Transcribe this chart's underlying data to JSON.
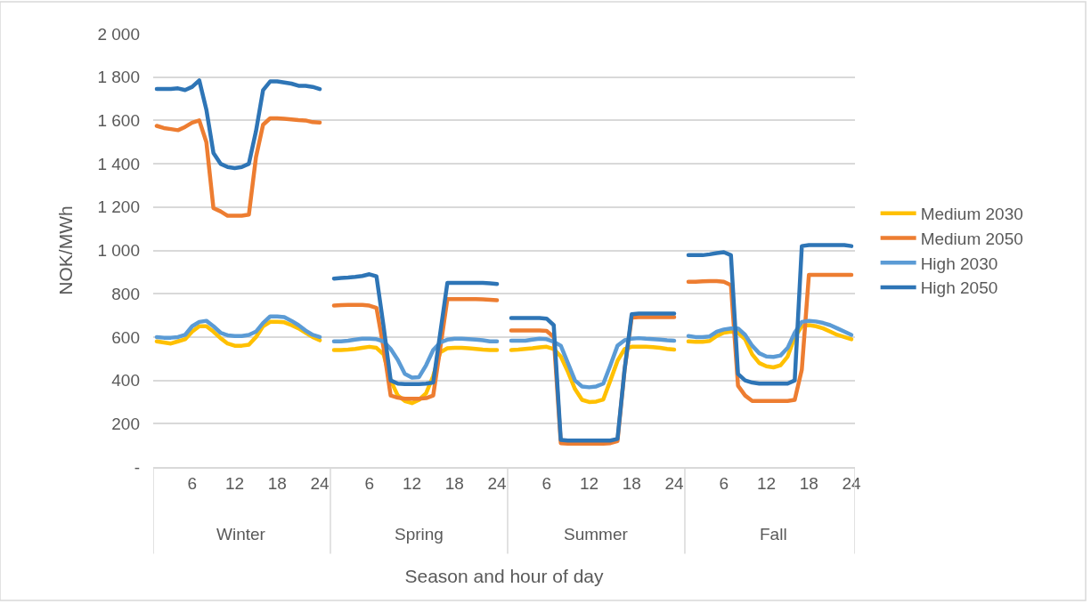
{
  "chart_data": {
    "type": "line",
    "xlabel": "Season and hour of day",
    "ylabel": "NOK/MWh",
    "categories": [
      null,
      null,
      null,
      null,
      null,
      "6",
      null,
      null,
      null,
      null,
      null,
      "12",
      null,
      null,
      null,
      null,
      null,
      "18",
      null,
      null,
      null,
      null,
      null,
      "24",
      null,
      null,
      null,
      null,
      null,
      null,
      "6",
      null,
      null,
      null,
      null,
      null,
      "12",
      null,
      null,
      null,
      null,
      null,
      "18",
      null,
      null,
      null,
      null,
      null,
      "24",
      null,
      null,
      null,
      null,
      null,
      null,
      "6",
      null,
      null,
      null,
      null,
      null,
      "12",
      null,
      null,
      null,
      null,
      null,
      "18",
      null,
      null,
      null,
      null,
      null,
      "24",
      null,
      null,
      null,
      null,
      null,
      null,
      "6",
      null,
      null,
      null,
      null,
      null,
      "12",
      null,
      null,
      null,
      null,
      null,
      "18",
      null,
      null,
      null,
      null,
      null,
      "24"
    ],
    "series": [
      {
        "name": "Medium 2030",
        "color": "#ffc000",
        "values": [
          580,
          575,
          570,
          580,
          590,
          625,
          650,
          650,
          625,
          595,
          570,
          560,
          560,
          565,
          600,
          650,
          670,
          670,
          668,
          655,
          640,
          620,
          600,
          585,
          null,
          540,
          540,
          542,
          545,
          550,
          555,
          550,
          520,
          400,
          330,
          305,
          295,
          310,
          340,
          420,
          530,
          548,
          550,
          550,
          548,
          545,
          542,
          540,
          540,
          null,
          540,
          542,
          545,
          548,
          552,
          555,
          545,
          510,
          440,
          360,
          310,
          300,
          302,
          312,
          400,
          490,
          545,
          555,
          555,
          555,
          553,
          550,
          545,
          542,
          null,
          580,
          578,
          578,
          582,
          605,
          620,
          625,
          620,
          590,
          520,
          480,
          465,
          460,
          470,
          510,
          600,
          650,
          655,
          650,
          640,
          625,
          610,
          600,
          590
        ]
      },
      {
        "name": "Medium 2050",
        "color": "#ed7d31",
        "values": [
          1575,
          1565,
          1560,
          1555,
          1570,
          1590,
          1600,
          1500,
          1195,
          1180,
          1160,
          1160,
          1160,
          1165,
          1430,
          1580,
          1610,
          1610,
          1608,
          1605,
          1602,
          1600,
          1592,
          1590,
          null,
          745,
          747,
          748,
          748,
          748,
          745,
          735,
          550,
          330,
          320,
          315,
          315,
          315,
          318,
          330,
          550,
          775,
          775,
          775,
          775,
          775,
          774,
          772,
          770,
          null,
          630,
          630,
          630,
          630,
          630,
          628,
          600,
          110,
          108,
          108,
          108,
          108,
          108,
          108,
          110,
          120,
          450,
          690,
          692,
          692,
          692,
          692,
          692,
          692,
          null,
          855,
          855,
          857,
          858,
          858,
          855,
          840,
          375,
          330,
          305,
          305,
          305,
          305,
          305,
          305,
          310,
          450,
          887,
          887,
          887,
          887,
          887,
          887,
          887
        ]
      },
      {
        "name": "High 2030",
        "color": "#5b9bd5",
        "values": [
          600,
          597,
          597,
          600,
          610,
          650,
          670,
          675,
          650,
          620,
          608,
          605,
          605,
          610,
          625,
          665,
          695,
          695,
          692,
          675,
          655,
          630,
          610,
          600,
          null,
          580,
          580,
          583,
          588,
          592,
          592,
          590,
          580,
          545,
          495,
          430,
          413,
          415,
          470,
          540,
          575,
          588,
          592,
          592,
          590,
          588,
          585,
          580,
          580,
          null,
          583,
          583,
          583,
          588,
          592,
          590,
          578,
          560,
          480,
          400,
          372,
          368,
          372,
          385,
          470,
          560,
          585,
          592,
          595,
          592,
          590,
          588,
          585,
          583,
          null,
          605,
          600,
          600,
          603,
          625,
          635,
          640,
          640,
          610,
          560,
          525,
          510,
          508,
          515,
          550,
          620,
          670,
          675,
          672,
          665,
          655,
          640,
          625,
          610
        ]
      },
      {
        "name": "High 2050",
        "color": "#2e75b6",
        "values": [
          1745,
          1745,
          1745,
          1748,
          1740,
          1755,
          1785,
          1650,
          1450,
          1400,
          1385,
          1380,
          1385,
          1400,
          1550,
          1740,
          1780,
          1780,
          1775,
          1770,
          1760,
          1760,
          1755,
          1745,
          null,
          870,
          873,
          875,
          878,
          882,
          890,
          880,
          650,
          400,
          385,
          383,
          383,
          383,
          385,
          390,
          620,
          850,
          850,
          850,
          850,
          850,
          850,
          848,
          845,
          null,
          688,
          688,
          688,
          688,
          688,
          685,
          655,
          125,
          122,
          122,
          122,
          122,
          122,
          122,
          122,
          130,
          450,
          705,
          708,
          708,
          708,
          708,
          708,
          708,
          null,
          978,
          978,
          978,
          982,
          988,
          992,
          978,
          430,
          400,
          390,
          385,
          385,
          385,
          385,
          385,
          400,
          1020,
          1025,
          1025,
          1025,
          1025,
          1025,
          1025,
          1020
        ]
      }
    ],
    "annotations": [
      "Winter",
      "Spring",
      "Summer",
      "Fall"
    ],
    "ylim": [
      0,
      2000
    ],
    "yticks": [
      {
        "value": 0,
        "label": "-"
      },
      200,
      400,
      600,
      800,
      {
        "value": 1000,
        "label": "1 000"
      },
      {
        "value": 1200,
        "label": "1 200"
      },
      {
        "value": 1400,
        "label": "1 400"
      },
      {
        "value": 1600,
        "label": "1 600"
      },
      {
        "value": 1800,
        "label": "1 800"
      },
      {
        "value": 2000,
        "label": "2 000"
      }
    ],
    "grid": "y",
    "legend": "right"
  }
}
